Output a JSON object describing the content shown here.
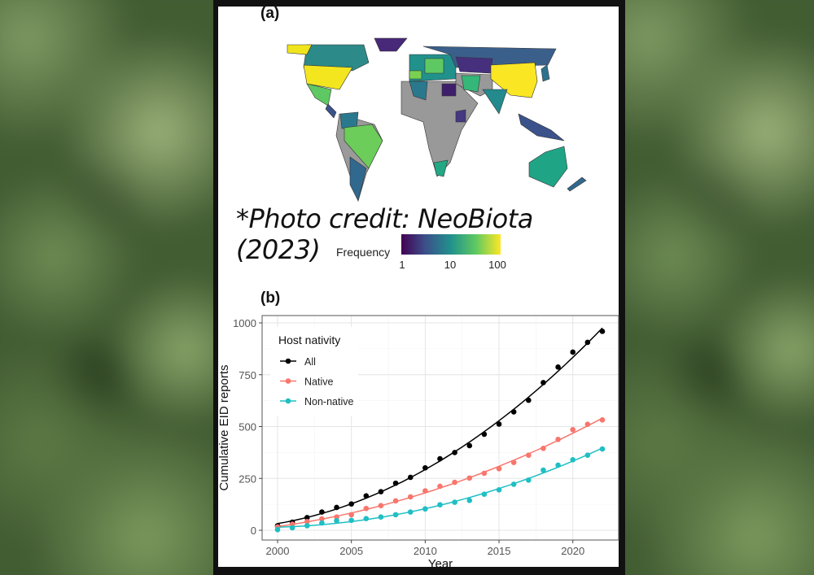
{
  "panel_a": {
    "label": "(a)",
    "credit": "*Photo credit: NeoBiota (2023)",
    "legend": {
      "title": "Frequency",
      "ticks": [
        "1",
        "10",
        "100"
      ],
      "scale": "log",
      "colormap": [
        "#440154",
        "#3b528b",
        "#21918c",
        "#5ec962",
        "#fde725"
      ],
      "no_data_color": "#999999"
    }
  },
  "chart_data": {
    "type": "scatter",
    "panel_label": "(b)",
    "xlabel": "Year",
    "ylabel": "Cumulative EID reports",
    "xlim": [
      1999,
      2023
    ],
    "ylim": [
      -30,
      1030
    ],
    "xticks": [
      "2000",
      "2005",
      "2010",
      "2015",
      "2020"
    ],
    "yticks": [
      "0",
      "250",
      "500",
      "750",
      "1000"
    ],
    "grid": true,
    "legend": {
      "title": "Host nativity",
      "placement": "top-left"
    },
    "trend_lines": "fitted curve per series",
    "x": [
      2000,
      2001,
      2002,
      2003,
      2004,
      2005,
      2006,
      2007,
      2008,
      2009,
      2010,
      2011,
      2012,
      2013,
      2014,
      2015,
      2016,
      2017,
      2018,
      2019,
      2020,
      2021,
      2022
    ],
    "series": [
      {
        "name": "All",
        "color": "#000000",
        "values": [
          22,
          39,
          61,
          88,
          110,
          127,
          166,
          186,
          227,
          255,
          301,
          345,
          375,
          408,
          463,
          512,
          571,
          627,
          712,
          787,
          859,
          906,
          959
        ]
      },
      {
        "name": "Native",
        "color": "#f8766d",
        "values": [
          16,
          29,
          42,
          55,
          64,
          75,
          105,
          119,
          142,
          161,
          190,
          212,
          231,
          252,
          275,
          297,
          327,
          362,
          395,
          438,
          485,
          511,
          532
        ]
      },
      {
        "name": "Non-native",
        "color": "#1fbfc4",
        "values": [
          3,
          12,
          22,
          35,
          46,
          48,
          56,
          64,
          75,
          88,
          103,
          123,
          135,
          144,
          174,
          195,
          222,
          242,
          290,
          314,
          340,
          362,
          392
        ]
      }
    ]
  }
}
